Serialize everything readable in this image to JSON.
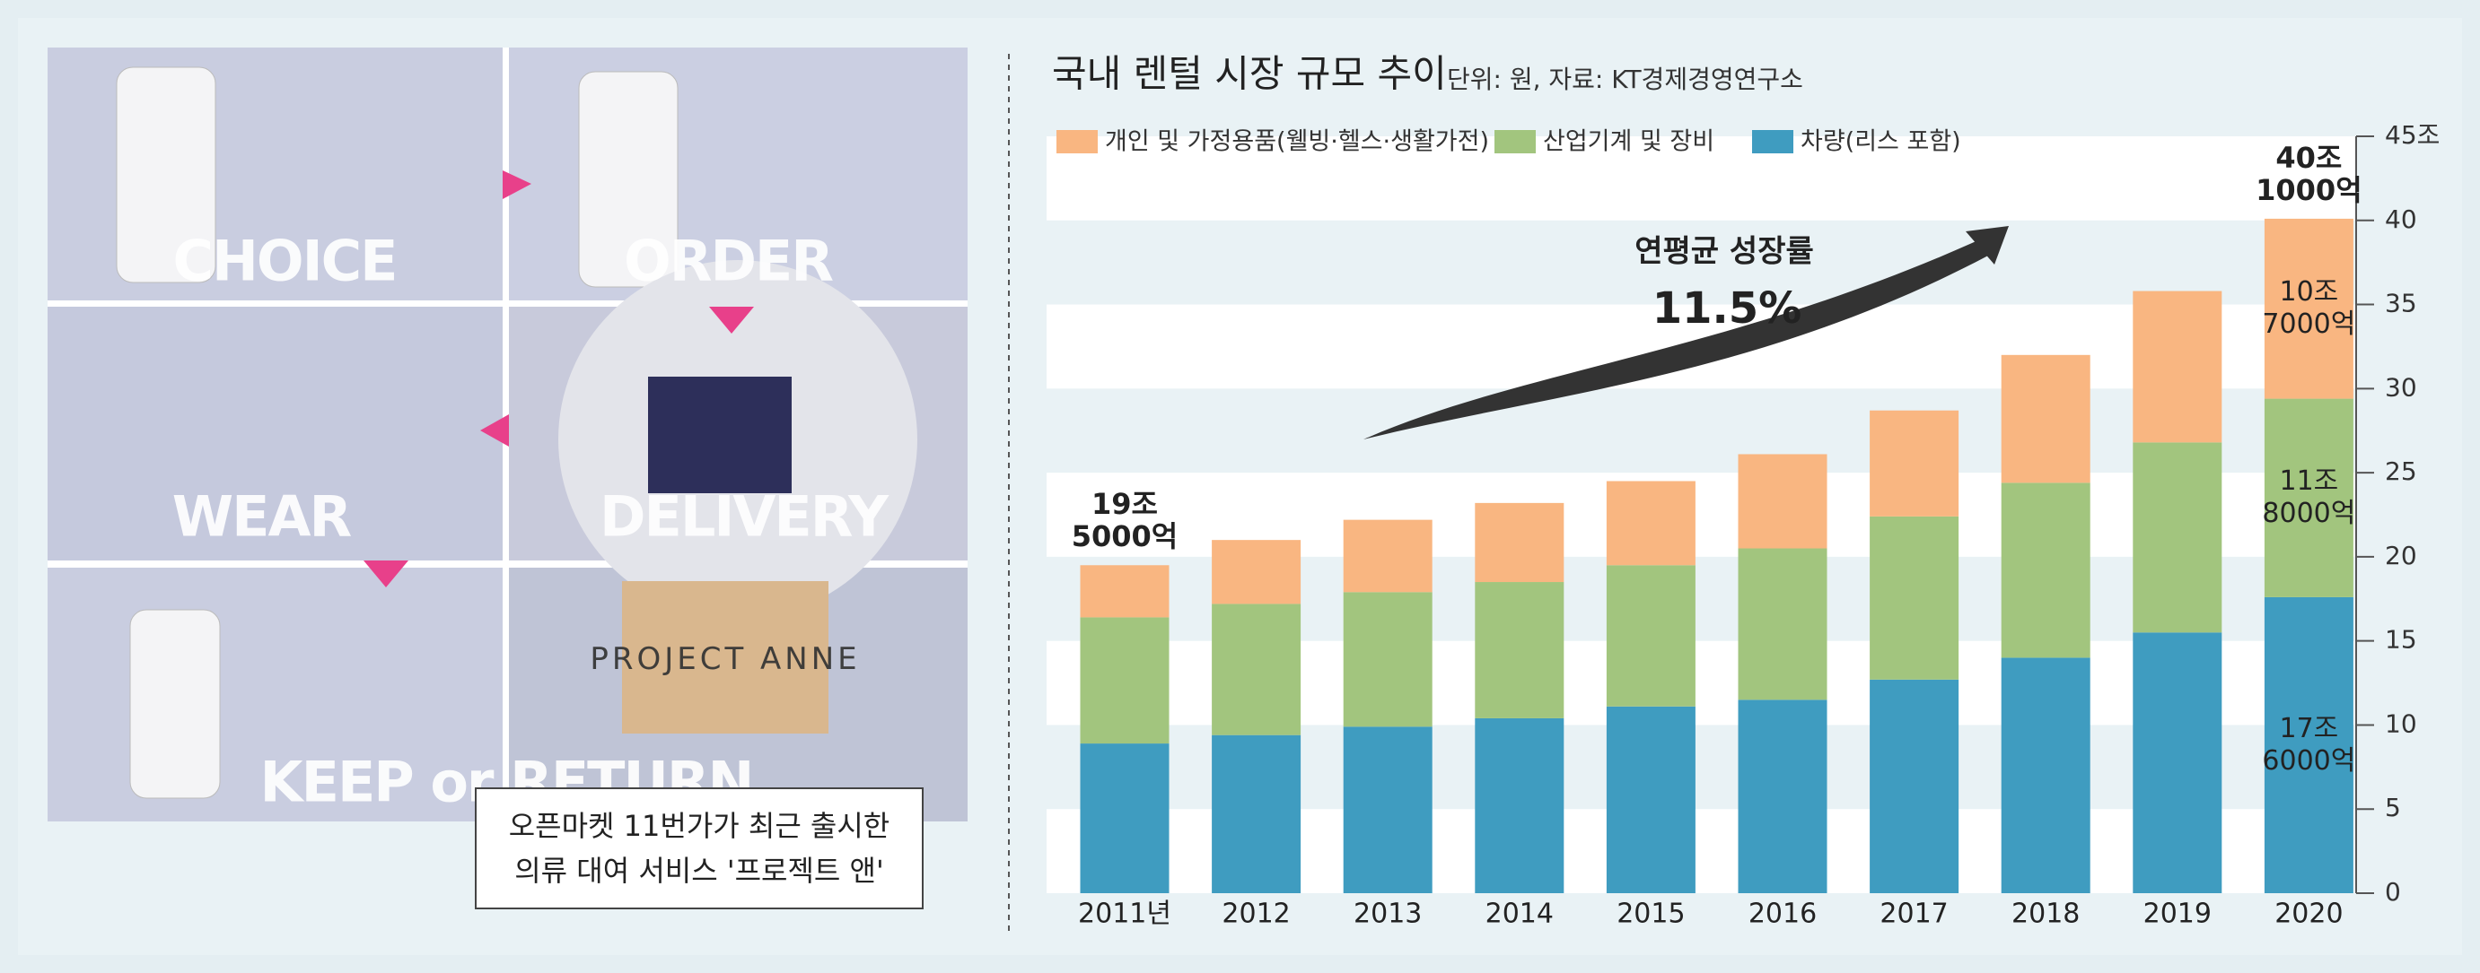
{
  "chart_data": {
    "type": "stacked_bar",
    "title": "국내 렌털 시장 규모 추이",
    "subtitle": "단위: 원, 자료: KT경제경영연구소",
    "categories": [
      "2011년",
      "2012",
      "2013",
      "2014",
      "2015",
      "2016",
      "2017",
      "2018",
      "2019",
      "2020"
    ],
    "series": [
      {
        "name": "차량(리스 포함)",
        "color": "#3f9cc0",
        "values": [
          8.9,
          9.4,
          9.9,
          10.4,
          11.1,
          11.5,
          12.7,
          14.0,
          15.5,
          17.6
        ],
        "value_labels": [
          null,
          null,
          null,
          null,
          null,
          null,
          null,
          null,
          null,
          "17조\n6000억"
        ]
      },
      {
        "name": "산업기계 및 장비",
        "color": "#a2c57e",
        "values": [
          7.5,
          7.8,
          8.0,
          8.1,
          8.4,
          9.0,
          9.7,
          10.4,
          11.3,
          11.8
        ],
        "value_labels": [
          null,
          null,
          null,
          null,
          null,
          null,
          null,
          null,
          null,
          "11조\n8000억"
        ]
      },
      {
        "name": "개인 및 가정용품(웰빙·헬스·생활가전)",
        "color": "#f9b681",
        "values": [
          3.1,
          3.8,
          4.3,
          4.7,
          5.0,
          5.6,
          6.3,
          7.6,
          9.0,
          10.7
        ],
        "value_labels": [
          null,
          null,
          null,
          null,
          null,
          null,
          null,
          null,
          null,
          "10조\n7000억"
        ]
      }
    ],
    "totals": {
      "values": [
        19.5,
        null,
        null,
        null,
        null,
        null,
        null,
        null,
        null,
        40.1
      ],
      "value_labels": [
        "19조\n5000억",
        null,
        null,
        null,
        null,
        null,
        null,
        null,
        null,
        "40조\n1000억"
      ]
    },
    "annotation": {
      "title": "연평균 성장률",
      "text": "11.5%"
    },
    "ylim": [
      0,
      45
    ],
    "yticks": [
      0,
      5,
      10,
      15,
      20,
      25,
      30,
      35,
      40,
      {
        "value": 45,
        "label": "45조"
      }
    ],
    "grid": true
  },
  "photo": {
    "labels": [
      "CHOICE",
      "ORDER",
      "WEAR",
      "DELIVERY",
      "KEEP or RETURN",
      "PROJECT ANNE"
    ],
    "caption": "오픈마켓 11번가가 최근 출시한\n의류 대여 서비스 '프로젝트 앤'"
  }
}
